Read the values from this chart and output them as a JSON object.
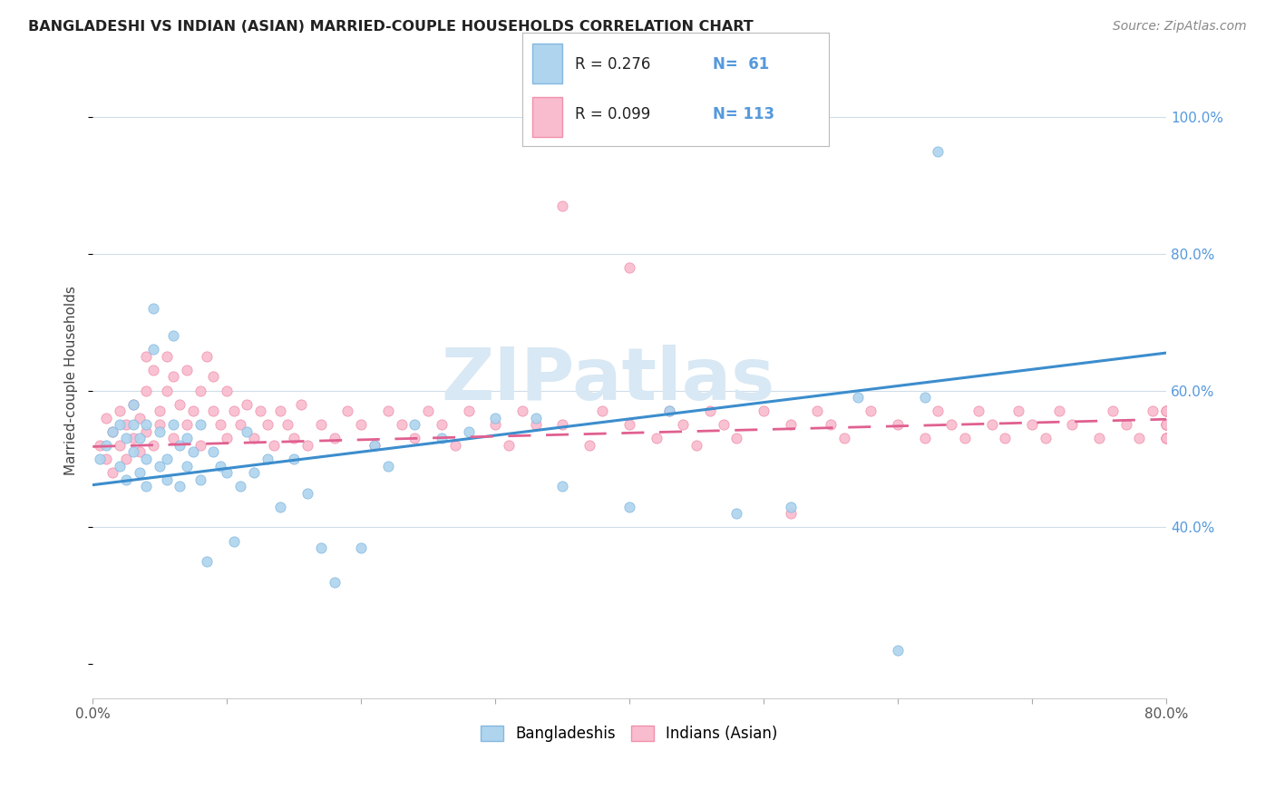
{
  "title": "BANGLADESHI VS INDIAN (ASIAN) MARRIED-COUPLE HOUSEHOLDS CORRELATION CHART",
  "source": "Source: ZipAtlas.com",
  "ylabel": "Married-couple Households",
  "xlim": [
    0.0,
    0.8
  ],
  "ylim": [
    0.15,
    1.08
  ],
  "yticks": [
    0.4,
    0.6,
    0.8,
    1.0
  ],
  "ytick_labels": [
    "40.0%",
    "60.0%",
    "80.0%",
    "100.0%"
  ],
  "background_color": "#ffffff",
  "blue_scatter_color": "#aed4ee",
  "blue_scatter_edge": "#85b8e0",
  "pink_scatter_color": "#f9bccf",
  "pink_scatter_edge": "#f090aa",
  "blue_line_color": "#3c8dcd",
  "pink_line_color": "#e06090",
  "right_axis_color": "#5599dd",
  "blue_line_x0": 0.0,
  "blue_line_y0": 0.462,
  "blue_line_x1": 0.8,
  "blue_line_y1": 0.655,
  "pink_line_x0": 0.0,
  "pink_line_y0": 0.518,
  "pink_line_x1": 0.8,
  "pink_line_y1": 0.558,
  "grid_color": "#d0dde8",
  "grid_style": "solid",
  "watermark_text": "ZIPatlas",
  "watermark_color": "#d8e8f4",
  "legend_r_b": "R = 0.276",
  "legend_n_b": "N=  61",
  "legend_r_i": "R = 0.099",
  "legend_n_i": "N= 113",
  "bangladeshi_x": [
    0.005,
    0.01,
    0.015,
    0.02,
    0.02,
    0.025,
    0.025,
    0.03,
    0.03,
    0.03,
    0.035,
    0.035,
    0.04,
    0.04,
    0.04,
    0.045,
    0.045,
    0.05,
    0.05,
    0.055,
    0.055,
    0.06,
    0.06,
    0.065,
    0.065,
    0.07,
    0.07,
    0.075,
    0.08,
    0.08,
    0.085,
    0.09,
    0.095,
    0.1,
    0.105,
    0.11,
    0.115,
    0.12,
    0.13,
    0.14,
    0.15,
    0.16,
    0.17,
    0.18,
    0.2,
    0.21,
    0.22,
    0.24,
    0.26,
    0.28,
    0.3,
    0.33,
    0.35,
    0.4,
    0.43,
    0.48,
    0.52,
    0.57,
    0.6,
    0.62,
    0.63
  ],
  "bangladeshi_y": [
    0.5,
    0.52,
    0.54,
    0.49,
    0.55,
    0.47,
    0.53,
    0.51,
    0.55,
    0.58,
    0.48,
    0.53,
    0.5,
    0.46,
    0.55,
    0.72,
    0.66,
    0.49,
    0.54,
    0.5,
    0.47,
    0.55,
    0.68,
    0.46,
    0.52,
    0.49,
    0.53,
    0.51,
    0.47,
    0.55,
    0.35,
    0.51,
    0.49,
    0.48,
    0.38,
    0.46,
    0.54,
    0.48,
    0.5,
    0.43,
    0.5,
    0.45,
    0.37,
    0.32,
    0.37,
    0.52,
    0.49,
    0.55,
    0.53,
    0.54,
    0.56,
    0.56,
    0.46,
    0.43,
    0.57,
    0.42,
    0.43,
    0.59,
    0.22,
    0.59,
    0.95
  ],
  "indian_x": [
    0.005,
    0.01,
    0.01,
    0.015,
    0.015,
    0.02,
    0.02,
    0.025,
    0.025,
    0.03,
    0.03,
    0.035,
    0.035,
    0.04,
    0.04,
    0.04,
    0.045,
    0.045,
    0.05,
    0.05,
    0.055,
    0.055,
    0.06,
    0.06,
    0.065,
    0.07,
    0.07,
    0.075,
    0.08,
    0.08,
    0.085,
    0.09,
    0.09,
    0.095,
    0.1,
    0.1,
    0.105,
    0.11,
    0.115,
    0.12,
    0.125,
    0.13,
    0.135,
    0.14,
    0.145,
    0.15,
    0.155,
    0.16,
    0.17,
    0.18,
    0.19,
    0.2,
    0.21,
    0.22,
    0.23,
    0.24,
    0.25,
    0.26,
    0.27,
    0.28,
    0.3,
    0.31,
    0.32,
    0.33,
    0.35,
    0.35,
    0.37,
    0.38,
    0.4,
    0.4,
    0.42,
    0.43,
    0.44,
    0.45,
    0.46,
    0.47,
    0.48,
    0.5,
    0.52,
    0.52,
    0.54,
    0.55,
    0.56,
    0.58,
    0.6,
    0.62,
    0.63,
    0.64,
    0.65,
    0.66,
    0.67,
    0.68,
    0.69,
    0.7,
    0.71,
    0.72,
    0.73,
    0.75,
    0.76,
    0.77,
    0.78,
    0.79,
    0.8,
    0.81,
    0.82,
    0.83,
    0.84,
    0.85,
    0.86,
    0.87,
    0.88,
    0.89,
    0.9
  ],
  "indian_y": [
    0.52,
    0.5,
    0.56,
    0.48,
    0.54,
    0.52,
    0.57,
    0.5,
    0.55,
    0.53,
    0.58,
    0.51,
    0.56,
    0.54,
    0.6,
    0.65,
    0.52,
    0.63,
    0.57,
    0.55,
    0.6,
    0.65,
    0.53,
    0.62,
    0.58,
    0.55,
    0.63,
    0.57,
    0.52,
    0.6,
    0.65,
    0.57,
    0.62,
    0.55,
    0.53,
    0.6,
    0.57,
    0.55,
    0.58,
    0.53,
    0.57,
    0.55,
    0.52,
    0.57,
    0.55,
    0.53,
    0.58,
    0.52,
    0.55,
    0.53,
    0.57,
    0.55,
    0.52,
    0.57,
    0.55,
    0.53,
    0.57,
    0.55,
    0.52,
    0.57,
    0.55,
    0.52,
    0.57,
    0.55,
    0.87,
    0.55,
    0.52,
    0.57,
    0.55,
    0.78,
    0.53,
    0.57,
    0.55,
    0.52,
    0.57,
    0.55,
    0.53,
    0.57,
    0.55,
    0.42,
    0.57,
    0.55,
    0.53,
    0.57,
    0.55,
    0.53,
    0.57,
    0.55,
    0.53,
    0.57,
    0.55,
    0.53,
    0.57,
    0.55,
    0.53,
    0.57,
    0.55,
    0.53,
    0.57,
    0.55,
    0.53,
    0.57,
    0.55,
    0.53,
    0.57,
    0.55,
    0.53,
    0.57,
    0.55,
    0.53,
    0.57,
    0.55,
    0.53
  ]
}
